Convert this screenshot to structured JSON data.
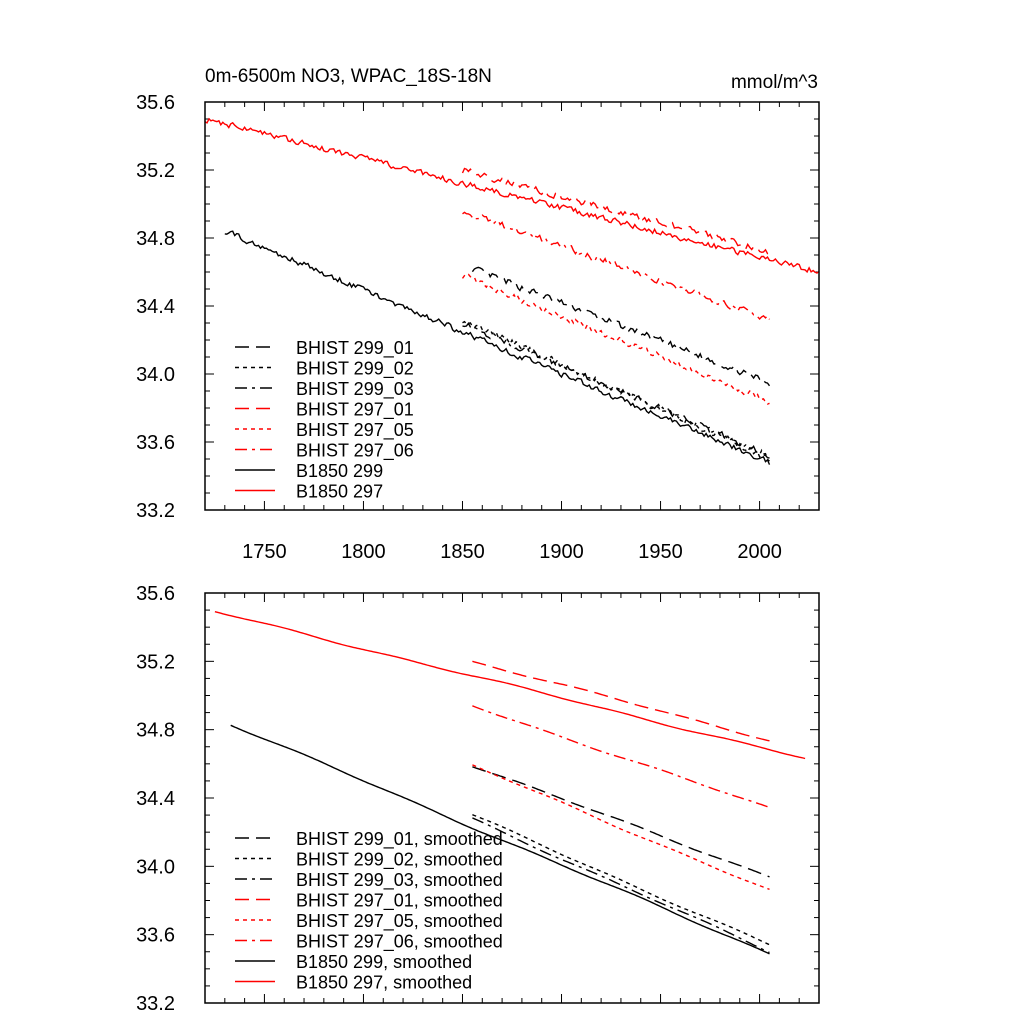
{
  "chart_data": [
    {
      "type": "line",
      "title": "0m-6500m NO3, WPAC_18S-18N",
      "units": "mmol/m^3",
      "xlim": [
        1720,
        2030
      ],
      "ylim": [
        33.2,
        35.6
      ],
      "xticks": [
        1750,
        1800,
        1850,
        1900,
        1950,
        2000
      ],
      "yticks": [
        33.2,
        33.6,
        34.0,
        34.4,
        34.8,
        35.2,
        35.6
      ],
      "grid": false,
      "legend_position": "lower-left",
      "series": [
        {
          "name": "BHIST 299_01",
          "color": "#000000",
          "dash": "long-dash",
          "x_start": 1855,
          "x_end": 2005,
          "y_start": 34.62,
          "y_end": 33.95,
          "noise": 0.018,
          "smoothed": false
        },
        {
          "name": "BHIST 299_02",
          "color": "#000000",
          "dash": "dotted",
          "x_start": 1850,
          "x_end": 2005,
          "y_start": 34.32,
          "y_end": 33.5,
          "noise": 0.018,
          "smoothed": false
        },
        {
          "name": "BHIST 299_03",
          "color": "#000000",
          "dash": "dash-dot",
          "x_start": 1850,
          "x_end": 2005,
          "y_start": 34.3,
          "y_end": 33.52,
          "noise": 0.018,
          "smoothed": false
        },
        {
          "name": "BHIST 297_01",
          "color": "#ff0000",
          "dash": "long-dash",
          "x_start": 1850,
          "x_end": 2005,
          "y_start": 35.2,
          "y_end": 34.72,
          "noise": 0.018,
          "smoothed": false
        },
        {
          "name": "BHIST 297_05",
          "color": "#ff0000",
          "dash": "dotted",
          "x_start": 1850,
          "x_end": 2005,
          "y_start": 34.58,
          "y_end": 33.84,
          "noise": 0.018,
          "smoothed": false
        },
        {
          "name": "BHIST 297_06",
          "color": "#ff0000",
          "dash": "dash-dot",
          "x_start": 1850,
          "x_end": 2005,
          "y_start": 34.96,
          "y_end": 34.32,
          "noise": 0.018,
          "smoothed": false
        },
        {
          "name": "B1850 299",
          "color": "#000000",
          "dash": "solid",
          "x_start": 1730,
          "x_end": 2005,
          "y_start": 34.84,
          "y_end": 33.48,
          "noise": 0.016,
          "smoothed": false
        },
        {
          "name": "B1850 297",
          "color": "#ff0000",
          "dash": "solid",
          "x_start": 1720,
          "x_end": 2030,
          "y_start": 35.5,
          "y_end": 34.6,
          "noise": 0.016,
          "smoothed": false
        }
      ]
    },
    {
      "type": "line",
      "xlim": [
        1720,
        2030
      ],
      "ylim": [
        33.2,
        35.6
      ],
      "yticks": [
        33.2,
        33.6,
        34.0,
        34.4,
        34.8,
        35.2,
        35.6
      ],
      "grid": false,
      "legend_position": "lower-left",
      "series": [
        {
          "name": "BHIST 299_01, smoothed",
          "color": "#000000",
          "dash": "long-dash",
          "x_start": 1855,
          "x_end": 2005,
          "y_start": 34.59,
          "y_end": 33.94,
          "noise": 0.004,
          "smoothed": true
        },
        {
          "name": "BHIST 299_02, smoothed",
          "color": "#000000",
          "dash": "dotted",
          "x_start": 1855,
          "x_end": 2005,
          "y_start": 34.3,
          "y_end": 33.54,
          "noise": 0.004,
          "smoothed": true
        },
        {
          "name": "BHIST 299_03, smoothed",
          "color": "#000000",
          "dash": "dash-dot",
          "x_start": 1855,
          "x_end": 2005,
          "y_start": 34.28,
          "y_end": 33.5,
          "noise": 0.004,
          "smoothed": true
        },
        {
          "name": "BHIST 297_01, smoothed",
          "color": "#ff0000",
          "dash": "long-dash",
          "x_start": 1855,
          "x_end": 2005,
          "y_start": 35.2,
          "y_end": 34.74,
          "noise": 0.004,
          "smoothed": true
        },
        {
          "name": "BHIST 297_05, smoothed",
          "color": "#ff0000",
          "dash": "dotted",
          "x_start": 1855,
          "x_end": 2005,
          "y_start": 34.59,
          "y_end": 33.86,
          "noise": 0.004,
          "smoothed": true
        },
        {
          "name": "BHIST 297_06, smoothed",
          "color": "#ff0000",
          "dash": "dash-dot",
          "x_start": 1855,
          "x_end": 2005,
          "y_start": 34.94,
          "y_end": 34.34,
          "noise": 0.004,
          "smoothed": true
        },
        {
          "name": "B1850 299, smoothed",
          "color": "#000000",
          "dash": "solid",
          "x_start": 1733,
          "x_end": 2005,
          "y_start": 34.83,
          "y_end": 33.49,
          "noise": 0.004,
          "smoothed": true
        },
        {
          "name": "B1850 297, smoothed",
          "color": "#ff0000",
          "dash": "solid",
          "x_start": 1725,
          "x_end": 2023,
          "y_start": 35.49,
          "y_end": 34.63,
          "noise": 0.004,
          "smoothed": true
        }
      ]
    }
  ]
}
